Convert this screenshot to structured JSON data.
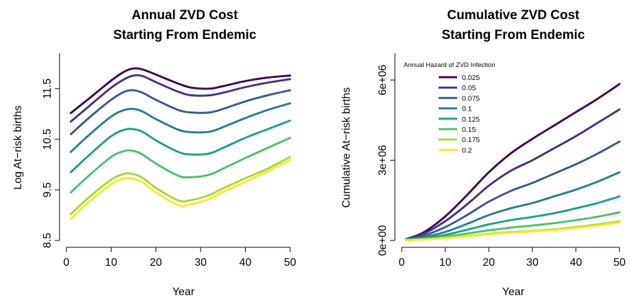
{
  "chart_data": [
    {
      "type": "line",
      "title_lines": [
        "Annual ZVD Cost",
        "Starting From Endemic"
      ],
      "xlabel": "Year",
      "ylabel": "Log At−risk births",
      "xlim": [
        0,
        52
      ],
      "ylim": [
        8.5,
        12.2
      ],
      "xticks": [
        0,
        10,
        20,
        30,
        40,
        50
      ],
      "yticks": [
        8.5,
        9.5,
        10.5,
        11.5
      ],
      "ytick_labels": [
        "8.5",
        "9.5",
        "10.5",
        "11.5"
      ],
      "x": [
        1,
        5,
        10,
        13,
        15,
        17,
        20,
        25,
        28,
        32,
        35,
        40,
        45,
        50
      ],
      "series": [
        {
          "name": "0.025",
          "color": "#440154",
          "values": [
            11.02,
            11.3,
            11.66,
            11.84,
            11.9,
            11.88,
            11.78,
            11.6,
            11.52,
            11.5,
            11.55,
            11.65,
            11.72,
            11.76
          ]
        },
        {
          "name": "0.05",
          "color": "#46327e",
          "values": [
            10.85,
            11.15,
            11.52,
            11.69,
            11.76,
            11.75,
            11.63,
            11.44,
            11.37,
            11.37,
            11.42,
            11.53,
            11.62,
            11.69
          ]
        },
        {
          "name": "0.075",
          "color": "#365c8d",
          "values": [
            10.6,
            10.92,
            11.28,
            11.44,
            11.47,
            11.42,
            11.28,
            11.08,
            11.03,
            11.03,
            11.1,
            11.25,
            11.37,
            11.47
          ]
        },
        {
          "name": "0.1",
          "color": "#277f8e",
          "values": [
            10.25,
            10.58,
            10.95,
            11.08,
            11.1,
            11.05,
            10.9,
            10.69,
            10.64,
            10.65,
            10.74,
            10.92,
            11.08,
            11.21
          ]
        },
        {
          "name": "0.125",
          "color": "#1fa187",
          "values": [
            9.85,
            10.18,
            10.56,
            10.69,
            10.7,
            10.65,
            10.48,
            10.25,
            10.2,
            10.22,
            10.33,
            10.53,
            10.7,
            10.87
          ]
        },
        {
          "name": "0.15",
          "color": "#4ac16d",
          "values": [
            9.45,
            9.78,
            10.15,
            10.27,
            10.27,
            10.2,
            10.02,
            9.78,
            9.75,
            9.8,
            9.92,
            10.13,
            10.33,
            10.53
          ]
        },
        {
          "name": "0.175",
          "color": "#a0da39",
          "values": [
            9.02,
            9.35,
            9.7,
            9.82,
            9.81,
            9.74,
            9.54,
            9.29,
            9.3,
            9.4,
            9.53,
            9.73,
            9.92,
            10.15
          ]
        },
        {
          "name": "0.2",
          "color": "#fde725",
          "values": [
            8.93,
            9.26,
            9.61,
            9.73,
            9.72,
            9.65,
            9.45,
            9.2,
            9.22,
            9.32,
            9.46,
            9.66,
            9.87,
            10.09
          ]
        }
      ]
    },
    {
      "type": "line",
      "title_lines": [
        "Cumulative ZVD Cost",
        "Starting From Endemic"
      ],
      "xlabel": "Year",
      "ylabel": "Cumulative At−risk births",
      "xlim": [
        0,
        52
      ],
      "ylim": [
        0,
        7000000
      ],
      "xticks": [
        0,
        10,
        20,
        30,
        40,
        50
      ],
      "yticks": [
        0,
        3000000,
        6000000
      ],
      "ytick_labels": [
        "0e+00",
        "3e+06",
        "6e+06"
      ],
      "legend": {
        "title": "Annual Hazard of ZVD Infection",
        "position": "top-left"
      },
      "x": [
        1,
        5,
        10,
        15,
        20,
        25,
        30,
        35,
        40,
        45,
        50
      ],
      "series": [
        {
          "name": "0.025",
          "color": "#440154",
          "values": [
            50000,
            300000,
            900000,
            1700000,
            2550000,
            3250000,
            3800000,
            4300000,
            4800000,
            5300000,
            5850000
          ]
        },
        {
          "name": "0.05",
          "color": "#46327e",
          "values": [
            45000,
            250000,
            720000,
            1350000,
            2050000,
            2600000,
            3000000,
            3450000,
            3900000,
            4400000,
            4900000
          ]
        },
        {
          "name": "0.075",
          "color": "#365c8d",
          "values": [
            40000,
            180000,
            500000,
            950000,
            1450000,
            1850000,
            2150000,
            2500000,
            2850000,
            3250000,
            3700000
          ]
        },
        {
          "name": "0.1",
          "color": "#277f8e",
          "values": [
            30000,
            120000,
            320000,
            620000,
            950000,
            1200000,
            1400000,
            1650000,
            1900000,
            2200000,
            2550000
          ]
        },
        {
          "name": "0.125",
          "color": "#1fa187",
          "values": [
            25000,
            80000,
            210000,
            400000,
            600000,
            760000,
            880000,
            1020000,
            1200000,
            1400000,
            1650000
          ]
        },
        {
          "name": "0.15",
          "color": "#4ac16d",
          "values": [
            20000,
            55000,
            140000,
            260000,
            380000,
            480000,
            560000,
            650000,
            760000,
            890000,
            1050000
          ]
        },
        {
          "name": "0.175",
          "color": "#a0da39",
          "values": [
            15000,
            40000,
            95000,
            175000,
            250000,
            310000,
            360000,
            420000,
            500000,
            600000,
            720000
          ]
        },
        {
          "name": "0.2",
          "color": "#fde725",
          "values": [
            12000,
            35000,
            85000,
            160000,
            230000,
            290000,
            335000,
            390000,
            465000,
            560000,
            670000
          ]
        }
      ]
    }
  ]
}
